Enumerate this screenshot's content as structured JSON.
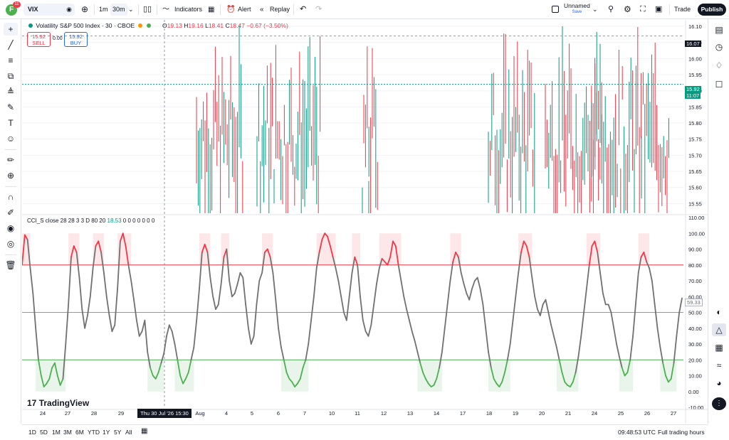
{
  "toolbar": {
    "avatar_letter": "F",
    "notification_count": "11",
    "symbol": "VIX",
    "interval_1m": "1m",
    "interval_30m": "30m",
    "indicators": "Indicators",
    "alert": "Alert",
    "replay": "Replay",
    "layout_name": "Unnamed",
    "save_label": "Save",
    "trade": "Trade",
    "publish": "Publish"
  },
  "legend": {
    "title": "Volatility S&P 500 Index · 30 · CBOE",
    "open_label": "O",
    "open": "19.13",
    "high_label": "H",
    "high": "19.16",
    "low_label": "L",
    "low": "18.41",
    "close_label": "C",
    "close": "18.47",
    "change": "−0.67 (−3.50%)",
    "sell_price": "15.92",
    "sell_label": "SELL",
    "spread": "0.00",
    "buy_price": "15.92",
    "buy_label": "BUY"
  },
  "price_axis": {
    "ticks": [
      "16.10",
      "16.05",
      "16.00",
      "15.95",
      "15.90",
      "15.85",
      "15.80",
      "15.75",
      "15.70",
      "15.65",
      "15.60",
      "15.55"
    ],
    "crosshair_price": "16.07",
    "last_price": "15.92",
    "countdown": "11:07"
  },
  "cci": {
    "legend": "CCI_S close 28 28 3 3 D 80 20",
    "value": "18.53",
    "zeros": "0 0 0 0 0 0 0",
    "ticks": [
      "110.00",
      "100.00",
      "90.00",
      "80.00",
      "70.00",
      "60.00",
      "50.00",
      "40.00",
      "30.00",
      "20.00",
      "10.00",
      "0.00",
      "-10.00"
    ],
    "last_value": "59.33",
    "upper_level": 80,
    "middle_level": 50,
    "lower_level": 20
  },
  "time_axis": {
    "labels": [
      "24",
      "27",
      "28",
      "29",
      "Aug",
      "4",
      "5",
      "6",
      "7",
      "10",
      "11",
      "12",
      "13",
      "14",
      "17",
      "18",
      "19",
      "20",
      "21",
      "24",
      "25",
      "26",
      "27"
    ],
    "crosshair_date": "Thu 30 Jul '26",
    "crosshair_time": "15:30"
  },
  "bottom": {
    "ranges": [
      "1D",
      "5D",
      "1M",
      "3M",
      "6M",
      "YTD",
      "1Y",
      "5Y",
      "All"
    ],
    "clock": "09:48:53 UTC",
    "session": "Full trading hours"
  },
  "brand": {
    "logo_text": "TradingView"
  },
  "colors": {
    "up": "#089981",
    "down": "#f23645",
    "cci_line": "#707070",
    "overbought": "#f23645",
    "oversold": "#4caf50",
    "accent": "#2962ff"
  },
  "chart_data": {
    "type": "line",
    "series": [
      {
        "name": "CCI_S",
        "values": [
          80,
          99,
          96,
          78,
          62,
          40,
          20,
          10,
          3,
          5,
          8,
          15,
          18,
          10,
          4,
          8,
          30,
          55,
          85,
          92,
          88,
          72,
          52,
          40,
          48,
          60,
          78,
          92,
          95,
          88,
          75,
          60,
          48,
          38,
          42,
          65,
          95,
          100,
          92,
          80,
          70,
          58,
          45,
          35,
          38,
          45,
          25,
          15,
          10,
          8,
          12,
          18,
          24,
          35,
          42,
          38,
          30,
          20,
          10,
          5,
          8,
          12,
          20,
          28,
          45,
          65,
          88,
          93,
          88,
          72,
          60,
          52,
          55,
          68,
          85,
          90,
          70,
          60,
          62,
          68,
          75,
          72,
          55,
          40,
          30,
          35,
          55,
          70,
          75,
          88,
          90,
          85,
          75,
          58,
          40,
          28,
          20,
          12,
          8,
          6,
          3,
          5,
          8,
          15,
          20,
          30,
          45,
          60,
          78,
          88,
          96,
          100,
          98,
          92,
          85,
          78,
          70,
          60,
          50,
          45,
          60,
          75,
          85,
          80,
          60,
          45,
          38,
          35,
          42,
          55,
          68,
          78,
          84,
          82,
          80,
          85,
          95,
          92,
          80,
          70,
          60,
          52,
          45,
          38,
          32,
          25,
          18,
          12,
          8,
          5,
          3,
          4,
          8,
          15,
          25,
          40,
          55,
          70,
          82,
          88,
          85,
          75,
          68,
          62,
          58,
          65,
          70,
          72,
          65,
          55,
          40,
          25,
          15,
          8,
          5,
          3,
          6,
          12,
          20,
          30,
          45,
          60,
          75,
          88,
          95,
          92,
          85,
          72,
          60,
          52,
          48,
          55,
          58,
          50,
          42,
          35,
          28,
          20,
          12,
          6,
          4,
          3,
          6,
          12,
          22,
          35,
          50,
          65,
          80,
          92,
          95,
          88,
          75,
          62,
          55,
          55,
          50,
          40,
          30,
          22,
          15,
          10,
          12,
          20,
          35,
          55,
          75,
          85,
          88,
          82,
          78,
          70,
          55,
          40,
          28,
          18,
          10,
          6,
          8,
          18,
          35,
          50,
          59
        ]
      }
    ],
    "ylim": [
      -10,
      110
    ],
    "levels": [
      80,
      50,
      20
    ]
  }
}
